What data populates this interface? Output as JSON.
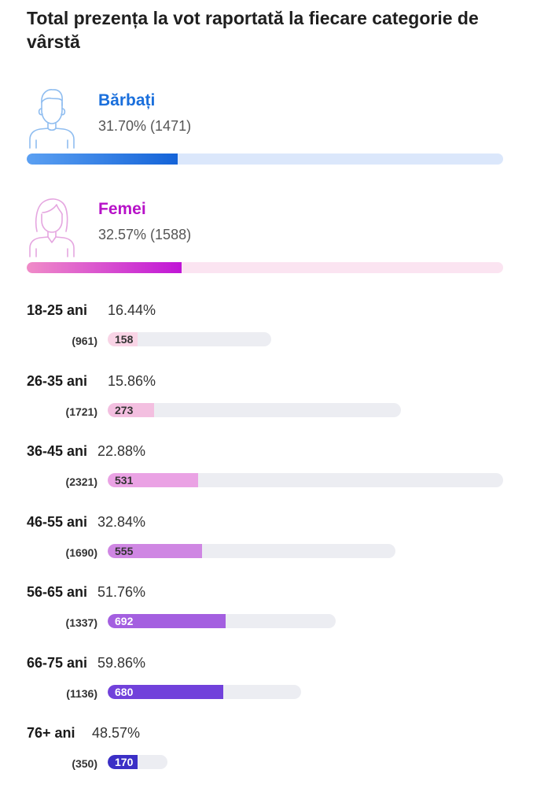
{
  "title": "Total prezența la vot raportată la fiecare categorie de vârstă",
  "genders": [
    {
      "name": "Bărbați",
      "stat": "31.70% (1471)",
      "fraction": 0.317,
      "icon": "man-avatar-icon"
    },
    {
      "name": "Femei",
      "stat": "32.57% (1588)",
      "fraction": 0.3257,
      "icon": "woman-avatar-icon"
    }
  ],
  "age_rows": [
    {
      "label": "18-25 ani",
      "pct": "16.44%",
      "count": "(961)",
      "value": "158",
      "fill_color": "#f9d4e6",
      "text_color": "#333333"
    },
    {
      "label": "26-35 ani",
      "pct": "15.86%",
      "count": "(1721)",
      "value": "273",
      "fill_color": "#f3bfe0",
      "text_color": "#333333"
    },
    {
      "label": "36-45 ani",
      "pct": "22.88%",
      "count": "(2321)",
      "value": "531",
      "fill_color": "#eaa2e4",
      "text_color": "#333333"
    },
    {
      "label": "46-55 ani",
      "pct": "32.84%",
      "count": "(1690)",
      "value": "555",
      "fill_color": "#cf86e3",
      "text_color": "#333333"
    },
    {
      "label": "56-65 ani",
      "pct": "51.76%",
      "count": "(1337)",
      "value": "692",
      "fill_color": "#a45fe0",
      "text_color": "#ffffff"
    },
    {
      "label": "66-75 ani",
      "pct": "59.86%",
      "count": "(1136)",
      "value": "680",
      "fill_color": "#7141db",
      "text_color": "#ffffff"
    },
    {
      "label": "76+ ani",
      "pct": "48.57%",
      "count": "(350)",
      "value": "170",
      "fill_color": "#3b2fc6",
      "text_color": "#ffffff"
    }
  ],
  "chart_data": {
    "type": "bar",
    "title": "Total prezența la vot raportată la fiecare categorie de vârstă",
    "gender": {
      "categories": [
        "Bărbați",
        "Femei"
      ],
      "percent": [
        31.7,
        32.57
      ],
      "counts": [
        1471,
        1588
      ]
    },
    "categories": [
      "18-25 ani",
      "26-35 ani",
      "36-45 ani",
      "46-55 ani",
      "56-65 ani",
      "66-75 ani",
      "76+ ani"
    ],
    "percent": [
      16.44,
      15.86,
      22.88,
      32.84,
      51.76,
      59.86,
      48.57
    ],
    "totals": [
      961,
      1721,
      2321,
      1690,
      1337,
      1136,
      350
    ],
    "values": [
      158,
      273,
      531,
      555,
      692,
      680,
      170
    ]
  }
}
